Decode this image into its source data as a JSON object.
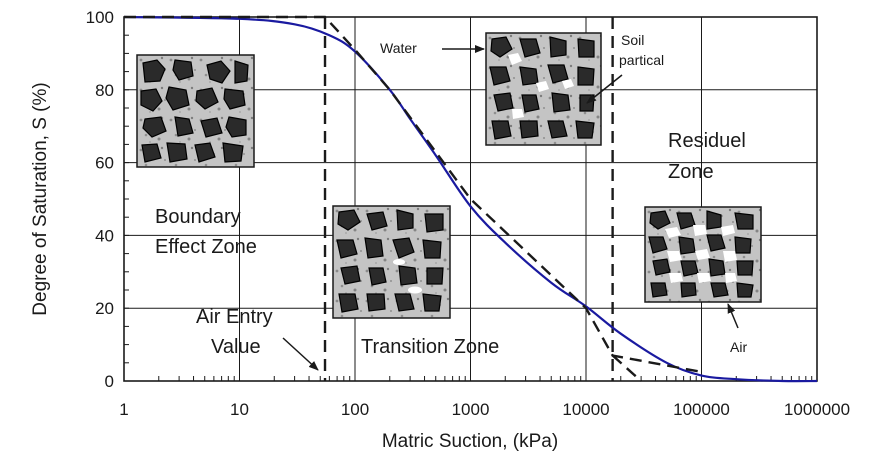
{
  "chart_data": {
    "type": "line",
    "xlabel": "Matric Suction, (kPa)",
    "ylabel": "Degree of Saturation, S (%)",
    "x_scale": "log",
    "xlim": [
      1,
      1000000
    ],
    "ylim": [
      0,
      100
    ],
    "x_ticks": [
      "1",
      "10",
      "100",
      "1000",
      "10000",
      "100000",
      "1000000"
    ],
    "y_ticks": [
      "0",
      "20",
      "40",
      "60",
      "80",
      "100"
    ],
    "grid": true,
    "series": [
      {
        "style": "solid",
        "color": "#1a1aa0",
        "x": [
          1,
          10,
          30,
          60,
          100,
          200,
          300,
          500,
          1000,
          2000,
          5000,
          10000,
          20000,
          50000,
          100000,
          200000,
          500000,
          1000000
        ],
        "y": [
          100,
          99.5,
          98,
          95,
          90.5,
          80,
          72,
          62,
          48,
          38,
          27,
          20.5,
          13,
          5,
          1.5,
          0.5,
          0,
          0
        ]
      },
      {
        "style": "dashed",
        "color": "#1a1a1a",
        "x": [
          1,
          55,
          100,
          200,
          1000,
          10000,
          17000,
          100000
        ],
        "y": [
          100,
          100,
          91,
          80,
          50,
          20,
          7,
          2.5
        ]
      },
      {
        "style": "dashed",
        "color": "#1a1a1a",
        "x": [
          17000,
          30000
        ],
        "y": [
          7,
          0
        ]
      }
    ],
    "vlines": [
      55,
      17000
    ],
    "annotations": {
      "boundary_line1": "Boundary",
      "boundary_line2": "Effect Zone",
      "air_entry_line1": "Air Entry",
      "air_entry_line2": "Value",
      "transition": "Transition Zone",
      "residual_line1": "Residuel",
      "residual_line2": "Zone",
      "water": "Water",
      "soil_line1": "Soil",
      "soil_line2": "partical",
      "air": "Air"
    }
  }
}
